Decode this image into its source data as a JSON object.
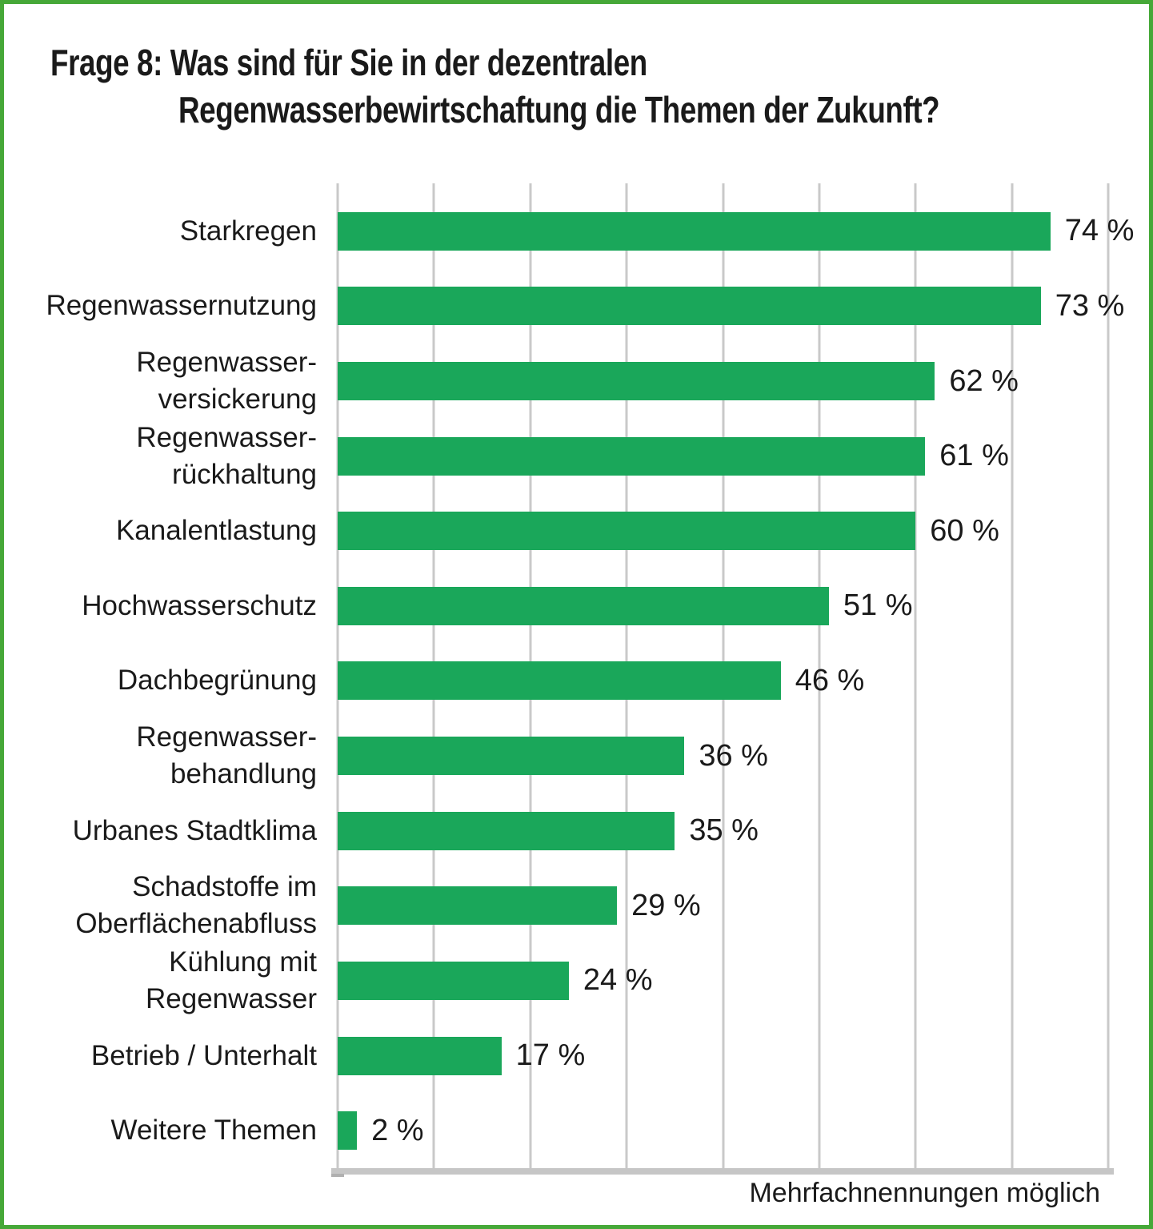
{
  "title": {
    "line1": "Frage 8: Was sind für Sie in der dezentralen",
    "line2": "Regenwasserbewirtschaftung die Themen der Zukunft?"
  },
  "footnote": "Mehrfachnennungen möglich",
  "colors": {
    "bar_green": "#1aa75a",
    "frame_green": "#46a838",
    "gridline_gray": "#c9c9c9",
    "axis_gray": "#c6c6c6",
    "text": "#1a1a1a"
  },
  "chart_data": {
    "type": "bar",
    "orientation": "horizontal",
    "title": "Frage 8: Was sind für Sie in der dezentralen Regenwasserbewirtschaftung die Themen der Zukunft?",
    "note": "Mehrfachnennungen möglich",
    "xlim": [
      0,
      80
    ],
    "gridline_interval": 10,
    "grid": true,
    "legend": false,
    "categories": [
      "Starkregen",
      "Regenwassernutzung",
      "Regenwasser-\nversickerung",
      "Regenwasser-\nrückhaltung",
      "Kanalentlastung",
      "Hochwasserschutz",
      "Dachbegrünung",
      "Regenwasser-\nbehandlung",
      "Urbanes Stadtklima",
      "Schadstoffe im\nOberflächenabfluss",
      "Kühlung mit\nRegenwasser",
      "Betrieb / Unterhalt",
      "Weitere Themen"
    ],
    "values": [
      74,
      73,
      62,
      61,
      60,
      51,
      46,
      36,
      35,
      29,
      24,
      17,
      2
    ],
    "value_labels": [
      "74 %",
      "73 %",
      "62 %",
      "61 %",
      "60 %",
      "51 %",
      "46 %",
      "36 %",
      "35 %",
      "29 %",
      "24 %",
      "17 %",
      "2 %"
    ]
  }
}
